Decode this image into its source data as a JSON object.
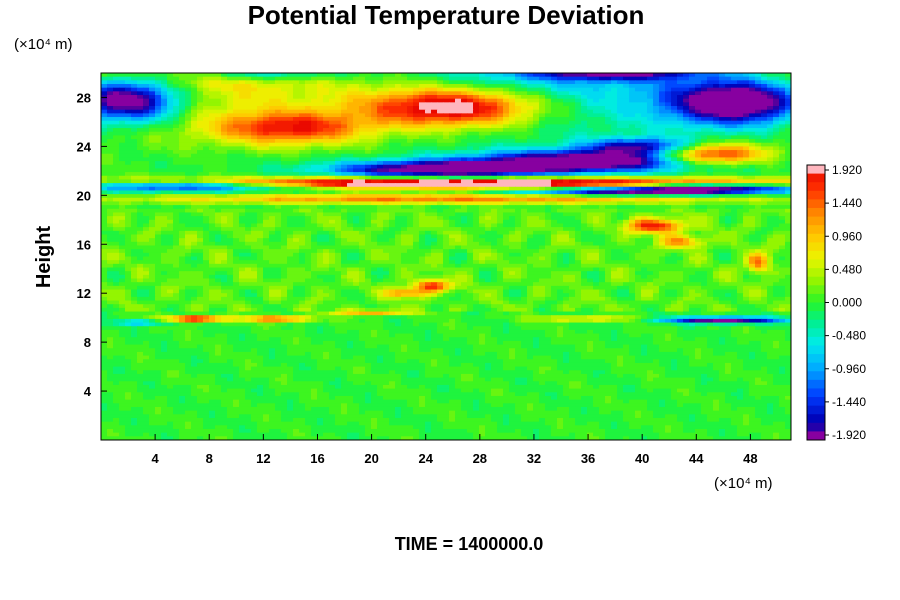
{
  "chart_data": {
    "type": "heatmap",
    "title": "Potential Temperature Deviation",
    "ylabel": "Height",
    "xlabel": "",
    "x_unit": "(×10⁴ m)",
    "y_unit": "(×10⁴ m)",
    "xlim": [
      0,
      51
    ],
    "ylim": [
      0,
      30
    ],
    "x_ticks": [
      "4",
      "8",
      "12",
      "16",
      "20",
      "24",
      "28",
      "32",
      "36",
      "40",
      "44",
      "48"
    ],
    "y_ticks": [
      "4",
      "8",
      "12",
      "16",
      "20",
      "24",
      "28"
    ],
    "x_tick_values": [
      4,
      8,
      12,
      16,
      20,
      24,
      28,
      32,
      36,
      40,
      44,
      48
    ],
    "y_tick_values": [
      4,
      8,
      12,
      16,
      20,
      24,
      28
    ],
    "colorbar": {
      "min": -1.92,
      "max": 1.92,
      "levels": 32,
      "labels": [
        "1.920",
        "1.440",
        "0.960",
        "0.480",
        "0.000",
        "-0.480",
        "-0.960",
        "-1.440",
        "-1.920"
      ]
    },
    "features": [
      {
        "x": 26,
        "y": 27.2,
        "sx": 6.5,
        "sy": 1.6,
        "amp": 2.4
      },
      {
        "x": 14,
        "y": 25.5,
        "sx": 5.5,
        "sy": 1.3,
        "amp": 1.6
      },
      {
        "x": 45,
        "y": 23.3,
        "sx": 4.0,
        "sy": 0.9,
        "amp": 2.2
      },
      {
        "x": 2,
        "y": 27.8,
        "sx": 4.0,
        "sy": 1.8,
        "amp": -2.6
      },
      {
        "x": 47,
        "y": 27.6,
        "sx": 5.0,
        "sy": 1.8,
        "amp": -2.6
      },
      {
        "x": 36,
        "y": 22.8,
        "sx": 9.0,
        "sy": 0.9,
        "amp": -2.4
      },
      {
        "x": 40,
        "y": 24.0,
        "sx": 4.0,
        "sy": 0.7,
        "amp": -1.6
      },
      {
        "x": 25,
        "y": 22.1,
        "sx": 8.0,
        "sy": 0.7,
        "amp": -2.3
      },
      {
        "x": 25,
        "y": 21.0,
        "sx": 30.0,
        "sy": 0.45,
        "amp": 2.6
      },
      {
        "x": 6,
        "y": 20.8,
        "sx": 9.0,
        "sy": 0.45,
        "amp": -2.4
      },
      {
        "x": 45,
        "y": 20.6,
        "sx": 7.0,
        "sy": 0.45,
        "amp": -2.3
      },
      {
        "x": 38,
        "y": 20.3,
        "sx": 8.0,
        "sy": 0.35,
        "amp": -1.6
      },
      {
        "x": 25,
        "y": 19.7,
        "sx": 22.0,
        "sy": 0.4,
        "amp": 1.3
      },
      {
        "x": 41,
        "y": 17.5,
        "sx": 2.0,
        "sy": 0.6,
        "amp": 1.7
      },
      {
        "x": 43,
        "y": 16.2,
        "sx": 1.6,
        "sy": 0.5,
        "amp": 1.1
      },
      {
        "x": 48.5,
        "y": 14.5,
        "sx": 0.8,
        "sy": 0.8,
        "amp": 1.3
      },
      {
        "x": 24.5,
        "y": 12.6,
        "sx": 1.4,
        "sy": 0.5,
        "amp": 1.5
      },
      {
        "x": 22.5,
        "y": 12.0,
        "sx": 1.4,
        "sy": 0.4,
        "amp": 1.2
      },
      {
        "x": 7,
        "y": 9.9,
        "sx": 2.2,
        "sy": 0.25,
        "amp": 2.1
      },
      {
        "x": 13,
        "y": 9.9,
        "sx": 2.5,
        "sy": 0.25,
        "amp": 1.6
      },
      {
        "x": 20,
        "y": 10.4,
        "sx": 3.0,
        "sy": 0.2,
        "amp": 1.2
      },
      {
        "x": 36,
        "y": 9.9,
        "sx": 4.0,
        "sy": 0.2,
        "amp": 1.0
      },
      {
        "x": 46,
        "y": 9.8,
        "sx": 4.5,
        "sy": 0.25,
        "amp": -2.2
      },
      {
        "x": 3,
        "y": 9.6,
        "sx": 2.0,
        "sy": 0.2,
        "amp": -1.0
      },
      {
        "x": 12,
        "y": 30.0,
        "sx": 6.0,
        "sy": 0.6,
        "amp": -1.2
      },
      {
        "x": 38,
        "y": 30.0,
        "sx": 6.0,
        "sy": 0.6,
        "amp": -1.4
      }
    ]
  },
  "footer": {
    "label": "TIME = 1400000.0"
  }
}
